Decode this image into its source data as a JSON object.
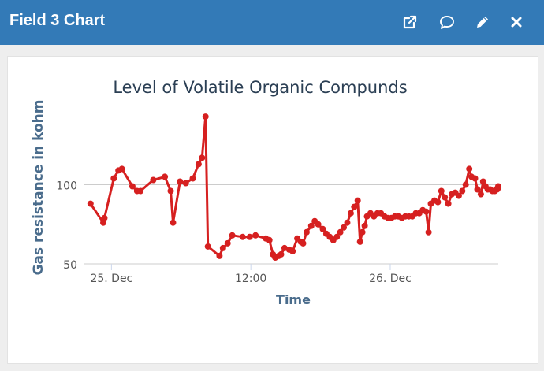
{
  "header": {
    "title": "Field 3 Chart",
    "buttons": [
      {
        "name": "open-external-button",
        "icon": "external-link-icon"
      },
      {
        "name": "comment-button",
        "icon": "speech-bubble-icon"
      },
      {
        "name": "edit-button",
        "icon": "pencil-icon"
      },
      {
        "name": "close-button",
        "icon": "close-icon"
      }
    ]
  },
  "colors": {
    "header_bg": "#337ab7",
    "series": "#d62020",
    "title_text": "#2b3f54",
    "axis_label": "#4a6c8c"
  },
  "chart_data": {
    "type": "line",
    "title": "Level of Volatile Organic Compunds",
    "xlabel": "Time",
    "ylabel": "Gas resistance in kohm",
    "ylim": [
      50,
      150
    ],
    "y_ticks": [
      50,
      100
    ],
    "x_ticks": [
      {
        "label": "25. Dec",
        "t": 0
      },
      {
        "label": "12:00",
        "t": 12
      },
      {
        "label": "26. Dec",
        "t": 24
      }
    ],
    "xlim": [
      -2.4,
      33.3
    ],
    "grid": true,
    "legend": "none",
    "series": [
      {
        "points": [
          [
            -1.8,
            88
          ],
          [
            -0.7,
            76
          ],
          [
            -0.6,
            79
          ],
          [
            0.2,
            104
          ],
          [
            0.6,
            109
          ],
          [
            0.9,
            110
          ],
          [
            1.8,
            99
          ],
          [
            2.2,
            96
          ],
          [
            2.5,
            96
          ],
          [
            3.6,
            103
          ],
          [
            4.6,
            105
          ],
          [
            5.1,
            96
          ],
          [
            5.3,
            76
          ],
          [
            5.9,
            102
          ],
          [
            6.4,
            101
          ],
          [
            7.0,
            104
          ],
          [
            7.5,
            113
          ],
          [
            7.8,
            117
          ],
          [
            8.1,
            143
          ],
          [
            8.3,
            61
          ],
          [
            9.3,
            55
          ],
          [
            9.6,
            60
          ],
          [
            10.0,
            63
          ],
          [
            10.4,
            68
          ],
          [
            11.3,
            67
          ],
          [
            11.9,
            67
          ],
          [
            12.4,
            68
          ],
          [
            13.3,
            66
          ],
          [
            13.6,
            65
          ],
          [
            13.9,
            56
          ],
          [
            14.1,
            54
          ],
          [
            14.4,
            55
          ],
          [
            14.6,
            56
          ],
          [
            14.9,
            60
          ],
          [
            15.3,
            59
          ],
          [
            15.6,
            58
          ],
          [
            16.0,
            66
          ],
          [
            16.3,
            64
          ],
          [
            16.5,
            63
          ],
          [
            16.8,
            70
          ],
          [
            17.2,
            74
          ],
          [
            17.5,
            77
          ],
          [
            17.8,
            75
          ],
          [
            18.2,
            72
          ],
          [
            18.5,
            69
          ],
          [
            18.8,
            67
          ],
          [
            19.1,
            65
          ],
          [
            19.4,
            67
          ],
          [
            19.7,
            70
          ],
          [
            20.0,
            73
          ],
          [
            20.3,
            76
          ],
          [
            20.6,
            82
          ],
          [
            20.9,
            86
          ],
          [
            21.2,
            90
          ],
          [
            21.4,
            64
          ],
          [
            21.6,
            70
          ],
          [
            21.8,
            74
          ],
          [
            22.0,
            80
          ],
          [
            22.3,
            82
          ],
          [
            22.6,
            80
          ],
          [
            22.9,
            82
          ],
          [
            23.2,
            82
          ],
          [
            23.5,
            80
          ],
          [
            23.8,
            79
          ],
          [
            24.1,
            79
          ],
          [
            24.4,
            80
          ],
          [
            24.7,
            80
          ],
          [
            25.0,
            79
          ],
          [
            25.3,
            80
          ],
          [
            25.6,
            80
          ],
          [
            25.9,
            80
          ],
          [
            26.2,
            82
          ],
          [
            26.5,
            82
          ],
          [
            26.8,
            84
          ],
          [
            27.1,
            83
          ],
          [
            27.3,
            70
          ],
          [
            27.5,
            88
          ],
          [
            27.8,
            90
          ],
          [
            28.1,
            89
          ],
          [
            28.4,
            96
          ],
          [
            28.7,
            92
          ],
          [
            29.0,
            88
          ],
          [
            29.3,
            94
          ],
          [
            29.6,
            95
          ],
          [
            29.9,
            93
          ],
          [
            30.2,
            96
          ],
          [
            30.5,
            100
          ],
          [
            30.8,
            110
          ],
          [
            31.0,
            105
          ],
          [
            31.3,
            104
          ],
          [
            31.5,
            97
          ],
          [
            31.8,
            94
          ],
          [
            32.0,
            102
          ],
          [
            32.2,
            99
          ],
          [
            32.4,
            97
          ],
          [
            32.6,
            97
          ],
          [
            32.8,
            96
          ],
          [
            33.0,
            96
          ],
          [
            33.2,
            97
          ],
          [
            33.3,
            98
          ],
          [
            33.1,
            97
          ],
          [
            33.3,
            99
          ]
        ]
      }
    ]
  }
}
